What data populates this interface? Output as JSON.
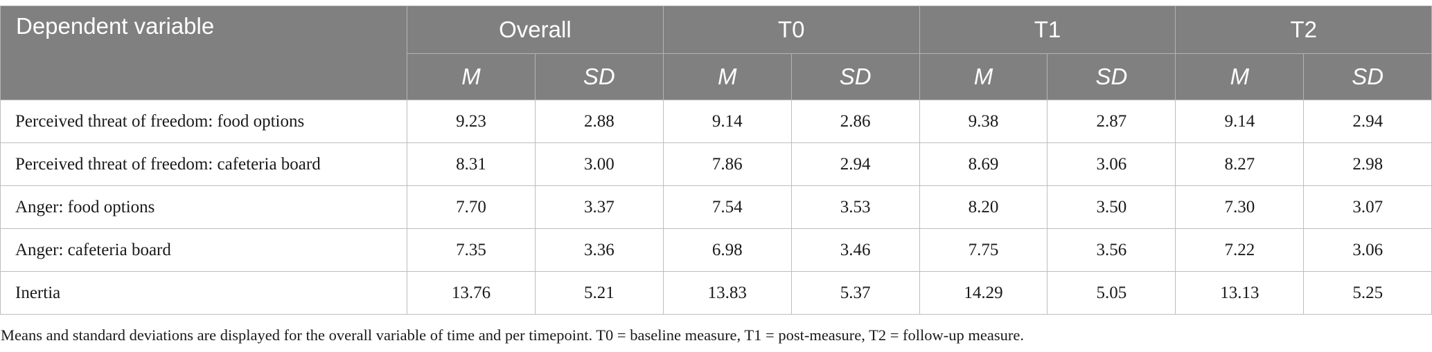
{
  "table": {
    "header": {
      "first_col": "Dependent variable",
      "groups": [
        "Overall",
        "T0",
        "T1",
        "T2"
      ],
      "sub": [
        "M",
        "SD"
      ]
    },
    "rows": [
      {
        "label": "Perceived threat of freedom: food options",
        "values": [
          "9.23",
          "2.88",
          "9.14",
          "2.86",
          "9.38",
          "2.87",
          "9.14",
          "2.94"
        ]
      },
      {
        "label": "Perceived threat of freedom: cafeteria board",
        "values": [
          "8.31",
          "3.00",
          "7.86",
          "2.94",
          "8.69",
          "3.06",
          "8.27",
          "2.98"
        ]
      },
      {
        "label": "Anger: food options",
        "values": [
          "7.70",
          "3.37",
          "7.54",
          "3.53",
          "8.20",
          "3.50",
          "7.30",
          "3.07"
        ]
      },
      {
        "label": "Anger: cafeteria board",
        "values": [
          "7.35",
          "3.36",
          "6.98",
          "3.46",
          "7.75",
          "3.56",
          "7.22",
          "3.06"
        ]
      },
      {
        "label": "Inertia",
        "values": [
          "13.76",
          "5.21",
          "13.83",
          "5.37",
          "14.29",
          "5.05",
          "13.13",
          "5.25"
        ]
      }
    ]
  },
  "footnote": "Means and standard deviations are displayed for the overall variable of time and per timepoint. T0 = baseline measure, T1 = post-measure, T2 = follow-up measure.",
  "colors": {
    "header_bg": "#808080",
    "header_text": "#ffffff",
    "grid": "#bdbdbd"
  }
}
